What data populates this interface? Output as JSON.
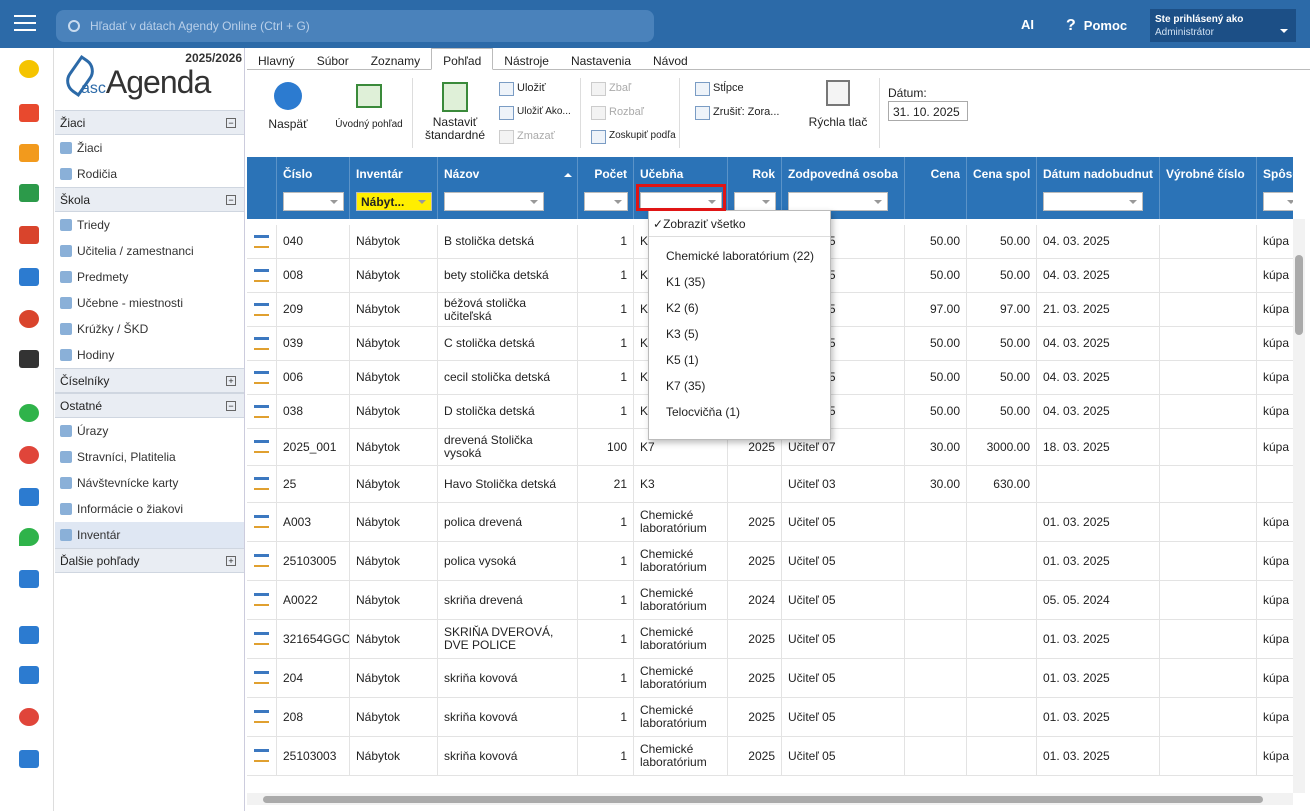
{
  "topbar": {
    "search": "Hľadať v dátach Agendy Online (Ctrl + G)",
    "ai": "AI",
    "help": "Pomoc",
    "user_label": "Ste prihlásený ako",
    "user": "Administrátor"
  },
  "logo": {
    "year": "2025/2026",
    "prefix": "asc",
    "name": "Agenda"
  },
  "tabs": [
    "Hlavný",
    "Súbor",
    "Zoznamy",
    "Pohľad",
    "Nástroje",
    "Nastavenia",
    "Návod"
  ],
  "toolbar": {
    "back": "Naspäť",
    "home_view": "Úvodný pohľad",
    "set_default": "Nastaviť štandardné",
    "save": "Uložiť",
    "save_as": "Uložiť Ako...",
    "delete": "Zmazať",
    "collapse": "Zbaľ",
    "expand": "Rozbaľ",
    "group_by": "Zoskupiť podľa",
    "columns": "Stĺpce",
    "cancel": "Zrušiť: Zora...",
    "quick_print": "Rýchla tlač",
    "date_label": "Dátum:",
    "date": "31. 10. 2025"
  },
  "sidebar": {
    "groups": [
      {
        "title": "Žiaci",
        "expanded": true,
        "items": [
          "Žiaci",
          "Rodičia"
        ]
      },
      {
        "title": "Škola",
        "expanded": true,
        "items": [
          "Triedy",
          "Učitelia / zamestnanci",
          "Predmety",
          "Učebne - miestnosti",
          "Krúžky / ŠKD",
          "Hodiny"
        ]
      },
      {
        "title": "Číselníky",
        "expanded": false,
        "items": []
      },
      {
        "title": "Ostatné",
        "expanded": true,
        "items": [
          "Úrazy",
          "Stravníci, Platitelia",
          "Návštevnícke karty",
          "Informácie o žiakovi",
          "Inventár"
        ]
      },
      {
        "title": "Ďalšie pohľady",
        "expanded": false,
        "items": []
      }
    ]
  },
  "table": {
    "columns": [
      {
        "label": "Číslo",
        "filter": true
      },
      {
        "label": "Inventár",
        "filter": true,
        "filter_value": "Nábyt..."
      },
      {
        "label": "Názov",
        "filter": true,
        "sorted": true
      },
      {
        "label": "Počet",
        "filter": true,
        "align": "right"
      },
      {
        "label": "Učebňa",
        "filter": true,
        "highlighted": true
      },
      {
        "label": "Rok",
        "filter": true,
        "align": "right"
      },
      {
        "label": "Zodpovedná osoba",
        "filter": true
      },
      {
        "label": "Cena",
        "filter": false,
        "align": "right"
      },
      {
        "label": "Cena spolu",
        "filter": false,
        "align": "right"
      },
      {
        "label": "Dátum nadobudnutia",
        "filter": true
      },
      {
        "label": "Výrobné číslo",
        "filter": false
      },
      {
        "label": "Spôsob",
        "filter": true
      }
    ],
    "rows": [
      [
        "040",
        "Nábytok",
        "B stolička detská",
        "1",
        "K7",
        null,
        "Učiteľ 05",
        "50.00",
        "50.00",
        "04. 03. 2025",
        null,
        "kúpa"
      ],
      [
        "008",
        "Nábytok",
        "bety stolička detská",
        "1",
        "K7",
        null,
        "Učiteľ 05",
        "50.00",
        "50.00",
        "04. 03. 2025",
        null,
        "kúpa"
      ],
      [
        "209",
        "Nábytok",
        "béžová stolička učiteľská",
        "1",
        "K7",
        null,
        "Učiteľ 05",
        "97.00",
        "97.00",
        "21. 03. 2025",
        null,
        "kúpa"
      ],
      [
        "039",
        "Nábytok",
        "C stolička detská",
        "1",
        "K7",
        null,
        "Učiteľ 05",
        "50.00",
        "50.00",
        "04. 03. 2025",
        null,
        "kúpa"
      ],
      [
        "006",
        "Nábytok",
        "cecil stolička detská",
        "1",
        "K7",
        null,
        "Učiteľ 05",
        "50.00",
        "50.00",
        "04. 03. 2025",
        null,
        "kúpa"
      ],
      [
        "038",
        "Nábytok",
        "D stolička detská",
        "1",
        "K7",
        null,
        "Učiteľ 05",
        "50.00",
        "50.00",
        "04. 03. 2025",
        null,
        "kúpa"
      ],
      [
        "2025_001",
        "Nábytok",
        "drevená Stolička vysoká",
        "100",
        "K7",
        "2025",
        "Učiteľ 07",
        "30.00",
        "3000.00",
        "18. 03. 2025",
        null,
        "kúpa"
      ],
      [
        "25",
        "Nábytok",
        "Havo Stolička detská",
        "21",
        "K3",
        null,
        "Učiteľ 03",
        "30.00",
        "630.00",
        null,
        null,
        null
      ],
      [
        "A003",
        "Nábytok",
        "polica drevená",
        "1",
        "Chemické laboratórium",
        "2025",
        "Učiteľ 05",
        null,
        null,
        "01. 03. 2025",
        null,
        "kúpa"
      ],
      [
        "25103005",
        "Nábytok",
        "polica vysoká",
        "1",
        "Chemické laboratórium",
        "2025",
        "Učiteľ 05",
        null,
        null,
        "01. 03. 2025",
        null,
        "kúpa"
      ],
      [
        "A0022",
        "Nábytok",
        "skriňa drevená",
        "1",
        "Chemické laboratórium",
        "2024",
        "Učiteľ 05",
        null,
        null,
        "05. 05. 2024",
        null,
        "kúpa"
      ],
      [
        "321654GGC",
        "Nábytok",
        "SKRIŇA DVEROVÁ, DVE POLICE",
        "1",
        "Chemické laboratórium",
        "2025",
        "Učiteľ 05",
        null,
        null,
        "01. 03. 2025",
        null,
        "kúpa"
      ],
      [
        "204",
        "Nábytok",
        "skriňa kovová",
        "1",
        "Chemické laboratórium",
        "2025",
        "Učiteľ 05",
        null,
        null,
        "01. 03. 2025",
        null,
        "kúpa"
      ],
      [
        "208",
        "Nábytok",
        "skriňa kovová",
        "1",
        "Chemické laboratórium",
        "2025",
        "Učiteľ 05",
        null,
        null,
        "01. 03. 2025",
        null,
        "kúpa"
      ],
      [
        "25103003",
        "Nábytok",
        "skriňa kovová",
        "1",
        "Chemické laboratórium",
        "2025",
        "Učiteľ 05",
        null,
        null,
        "01. 03. 2025",
        null,
        "kúpa"
      ]
    ]
  },
  "filter_menu": {
    "all": "Zobraziť všetko",
    "items": [
      "Chemické laboratórium (22)",
      "K1 (35)",
      "K2 (6)",
      "K3 (5)",
      "K5 (1)",
      "K7 (35)",
      "Telocvičňa (1)"
    ]
  }
}
